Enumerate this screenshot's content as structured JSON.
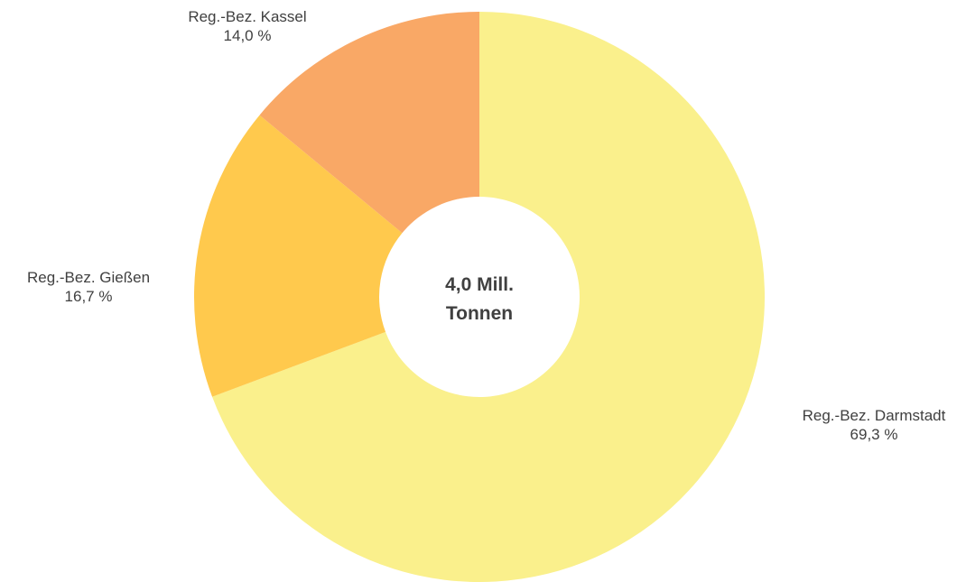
{
  "chart_data": {
    "type": "pie",
    "variant": "donut",
    "center_label": {
      "line1": "4,0 Mill.",
      "line2": "Tonnen"
    },
    "slices": [
      {
        "name": "Reg.-Bez. Darmstadt",
        "value": 69.3,
        "value_label": "69,3 %",
        "color": "#FAF08C"
      },
      {
        "name": "Reg.-Bez. Gießen",
        "value": 16.7,
        "value_label": "16,7 %",
        "color": "#FFC94D"
      },
      {
        "name": "Reg.-Bez. Kassel",
        "value": 14.0,
        "value_label": "14,0 %",
        "color": "#F9A866"
      }
    ],
    "title": "",
    "legend": "none",
    "grid": false
  }
}
